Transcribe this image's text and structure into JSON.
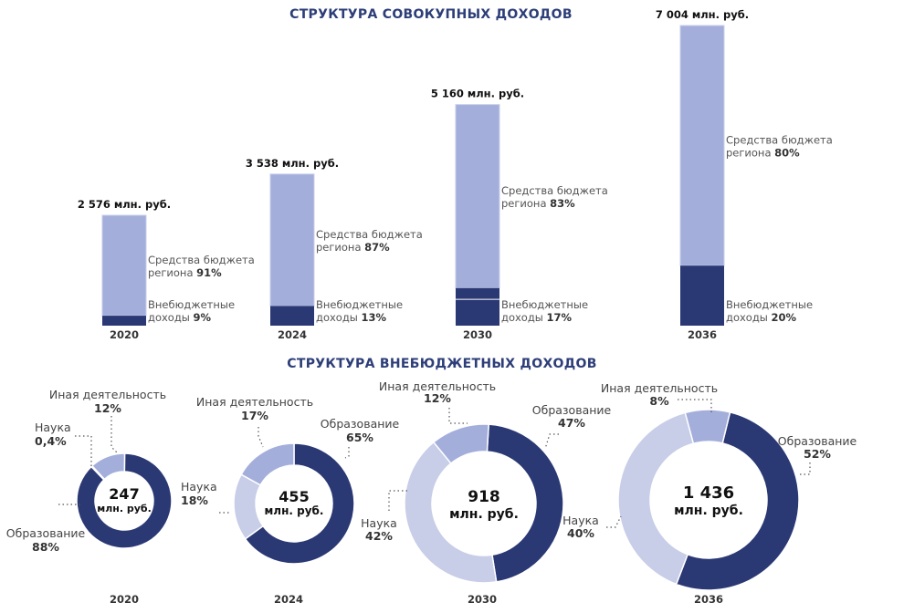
{
  "colors": {
    "budget": "#a3aedb",
    "extra": "#2a3874",
    "education": "#2a3874",
    "science": "#c8cde8",
    "other": "#a3aedb",
    "title": "#2d3e78"
  },
  "chart_data": [
    {
      "type": "bar",
      "title": "СТРУКТУРА СОВОКУПНЫХ ДОХОДОВ",
      "categories": [
        "2020",
        "2024",
        "2030",
        "2036"
      ],
      "totals": [
        "2 576 млн. руб.",
        "3 538 млн. руб.",
        "5 160 млн. руб.",
        "7 004 млн. руб."
      ],
      "total_values": [
        2576,
        3538,
        5160,
        7004
      ],
      "series": [
        {
          "name": "Средства бюджета региона",
          "values": [
            91,
            87,
            83,
            80
          ],
          "labels": [
            "91%",
            "87%",
            "83%",
            "80%"
          ]
        },
        {
          "name": "Внебюджетные доходы",
          "values": [
            9,
            13,
            17,
            20
          ],
          "labels": [
            "9%",
            "13%",
            "17%",
            "20%"
          ]
        }
      ],
      "label_lines": {
        "budget": [
          "Средства бюджета",
          "региона"
        ],
        "extra": [
          "Внебюджетные",
          "доходы"
        ]
      }
    },
    {
      "type": "pie",
      "title": "СТРУКТУРА ВНЕБЮДЖЕТНЫХ ДОХОДОВ",
      "categories": [
        "2020",
        "2024",
        "2030",
        "2036"
      ],
      "centers": [
        {
          "value": "247",
          "unit": "млн. руб."
        },
        {
          "value": "455",
          "unit": "млн. руб."
        },
        {
          "value": "918",
          "unit": "млн. руб."
        },
        {
          "value": "1 436",
          "unit": "млн. руб."
        }
      ],
      "slices": [
        [
          {
            "name": "Образование",
            "value": 88,
            "label": "88%"
          },
          {
            "name": "Наука",
            "value": 0.4,
            "label": "0,4%"
          },
          {
            "name": "Иная деятельность",
            "value": 12,
            "label": "12%"
          }
        ],
        [
          {
            "name": "Образование",
            "value": 65,
            "label": "65%"
          },
          {
            "name": "Наука",
            "value": 18,
            "label": "18%"
          },
          {
            "name": "Иная деятельность",
            "value": 17,
            "label": "17%"
          }
        ],
        [
          {
            "name": "Образование",
            "value": 47,
            "label": "47%"
          },
          {
            "name": "Наука",
            "value": 42,
            "label": "42%"
          },
          {
            "name": "Иная деятельность",
            "value": 12,
            "label": "12%"
          }
        ],
        [
          {
            "name": "Образование",
            "value": 52,
            "label": "52%"
          },
          {
            "name": "Наука",
            "value": 40,
            "label": "40%"
          },
          {
            "name": "Иная деятельность",
            "value": 8,
            "label": "8%"
          }
        ]
      ]
    }
  ]
}
